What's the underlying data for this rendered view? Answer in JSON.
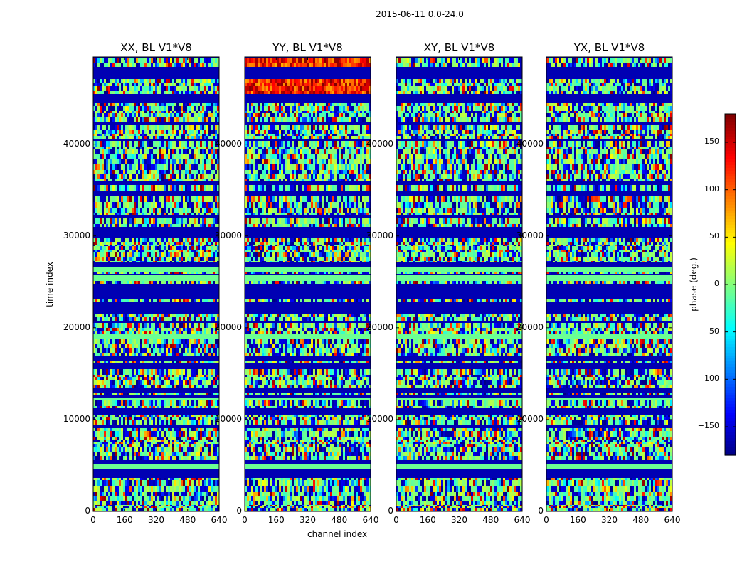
{
  "chart_data": {
    "type": "heatmap",
    "suptitle": "2015-06-11 0.0-24.0",
    "panels": [
      {
        "title": "XX, BL V1*V8"
      },
      {
        "title": "YY, BL V1*V8"
      },
      {
        "title": "XY, BL V1*V8"
      },
      {
        "title": "YX, BL V1*V8"
      }
    ],
    "xlabel": "channel index",
    "ylabel": "time index",
    "xlim": [
      0,
      640
    ],
    "ylim": [
      0,
      49500
    ],
    "xticks": [
      "0",
      "160",
      "320",
      "480",
      "640"
    ],
    "yticks": [
      "0",
      "10000",
      "20000",
      "30000",
      "40000"
    ],
    "colorbar": {
      "label": "phase (deg.)",
      "range": [
        -180,
        180
      ],
      "ticks": [
        "150",
        "100",
        "50",
        "0",
        "−50",
        "−100",
        "−150"
      ],
      "colormap": "jet"
    },
    "grid": false
  }
}
